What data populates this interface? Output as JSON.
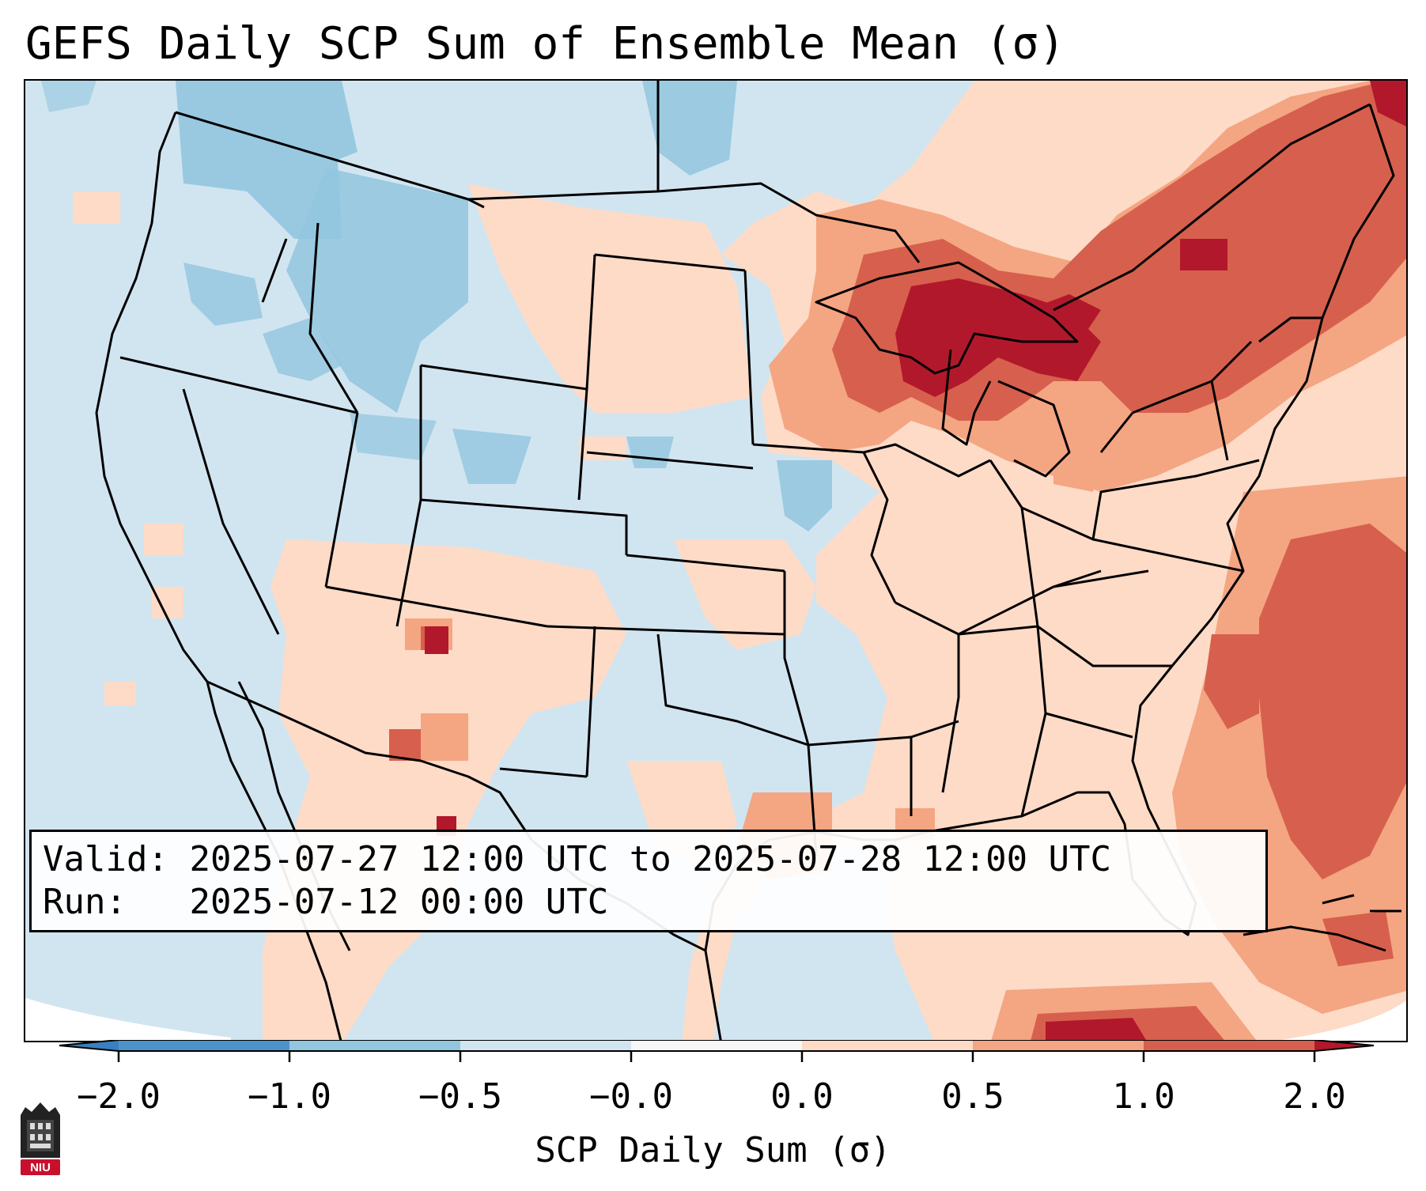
{
  "title": "GEFS Daily SCP Sum of Ensemble Mean (σ)",
  "info": {
    "valid_label": "Valid:",
    "valid_value": "2025-07-27 12:00 UTC to 2025-07-28 12:00 UTC",
    "run_label": "Run:",
    "run_value": "2025-07-12 00:00 UTC"
  },
  "colorbar": {
    "label": "SCP Daily Sum (σ)",
    "ticks": [
      "−2.0",
      "−1.0",
      "−0.5",
      "−0.0",
      "0.0",
      "0.5",
      "1.0",
      "2.0"
    ],
    "bins": [
      {
        "range": "below -2.0",
        "color": "#3a7fbf"
      },
      {
        "range": "-2.0 to -1.0",
        "color": "#4b93c9"
      },
      {
        "range": "-1.0 to -0.5",
        "color": "#92c5de"
      },
      {
        "range": "-0.5 to -0.0",
        "color": "#d1e5f0"
      },
      {
        "range": "-0.0 to 0.0",
        "color": "#f7f7f7"
      },
      {
        "range": "0.0 to 0.5",
        "color": "#fddbc7"
      },
      {
        "range": "0.5 to 1.0",
        "color": "#f4a582"
      },
      {
        "range": "1.0 to 2.0",
        "color": "#d6604d"
      },
      {
        "range": "above 2.0",
        "color": "#b2182b"
      }
    ]
  },
  "logo": {
    "text": "NIU"
  },
  "colors": {
    "neg_strong": "#92c5de",
    "neg_weak": "#d1e5f0",
    "neutral": "#f7f7f7",
    "pos_weak": "#fddbc7",
    "pos_mid": "#f4a582",
    "pos_strong": "#d6604d",
    "pos_max": "#b2182b"
  }
}
